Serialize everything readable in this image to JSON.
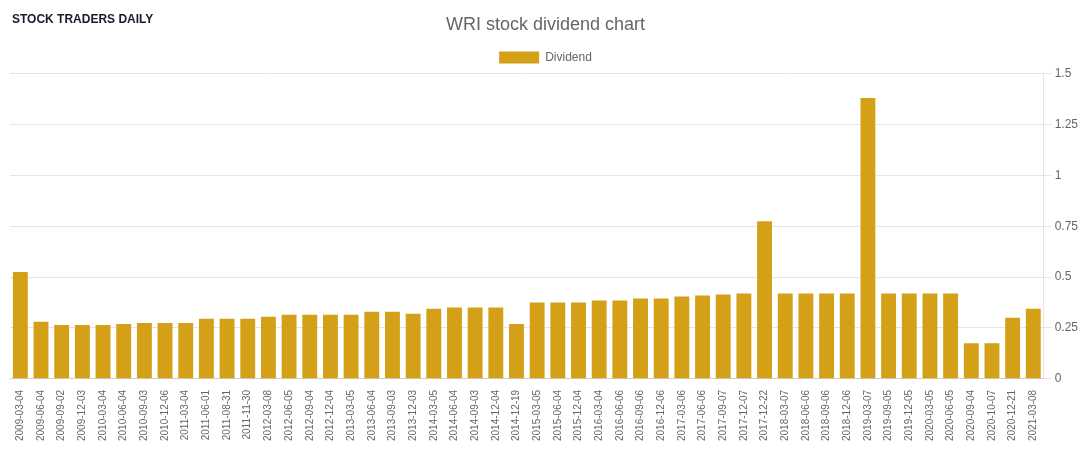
{
  "chart_data": {
    "type": "bar",
    "title": "WRI stock dividend chart",
    "annotations": [
      {
        "text": "STOCK TRADERS DAILY"
      }
    ],
    "categories": [
      "2009-03-04",
      "2009-06-04",
      "2009-09-02",
      "2009-12-03",
      "2010-03-04",
      "2010-06-04",
      "2010-09-03",
      "2010-12-06",
      "2011-03-04",
      "2011-06-01",
      "2011-08-31",
      "2011-11-30",
      "2012-03-08",
      "2012-06-05",
      "2012-09-04",
      "2012-12-04",
      "2013-03-05",
      "2013-06-04",
      "2013-09-03",
      "2013-12-03",
      "2014-03-05",
      "2014-06-04",
      "2014-09-03",
      "2014-12-04",
      "2014-12-19",
      "2015-03-05",
      "2015-06-04",
      "2015-12-04",
      "2016-03-04",
      "2016-06-06",
      "2016-09-06",
      "2016-12-06",
      "2017-03-06",
      "2017-06-06",
      "2017-09-07",
      "2017-12-07",
      "2017-12-22",
      "2018-03-07",
      "2018-06-06",
      "2018-09-06",
      "2018-12-06",
      "2019-03-07",
      "2019-09-05",
      "2019-12-05",
      "2020-03-05",
      "2020-06-05",
      "2020-09-04",
      "2020-10-07",
      "2020-12-21",
      "2021-03-08"
    ],
    "series": [
      {
        "name": "Dividend",
        "color": "#D4A017",
        "values": [
          0.525,
          0.28,
          0.265,
          0.265,
          0.265,
          0.27,
          0.275,
          0.275,
          0.275,
          0.295,
          0.295,
          0.295,
          0.305,
          0.315,
          0.315,
          0.315,
          0.315,
          0.33,
          0.33,
          0.32,
          0.345,
          0.35,
          0.35,
          0.35,
          0.27,
          0.375,
          0.375,
          0.375,
          0.385,
          0.385,
          0.395,
          0.395,
          0.405,
          0.41,
          0.415,
          0.42,
          0.775,
          0.42,
          0.42,
          0.42,
          0.42,
          1.38,
          0.42,
          0.42,
          0.42,
          0.42,
          0.175,
          0.175,
          0.3,
          0.345
        ]
      }
    ],
    "ylim": [
      0,
      1.5
    ],
    "yticks": [
      0,
      0.25,
      0.5,
      0.75,
      1.0,
      1.25,
      1.5
    ],
    "grid": true,
    "legend": "top"
  }
}
